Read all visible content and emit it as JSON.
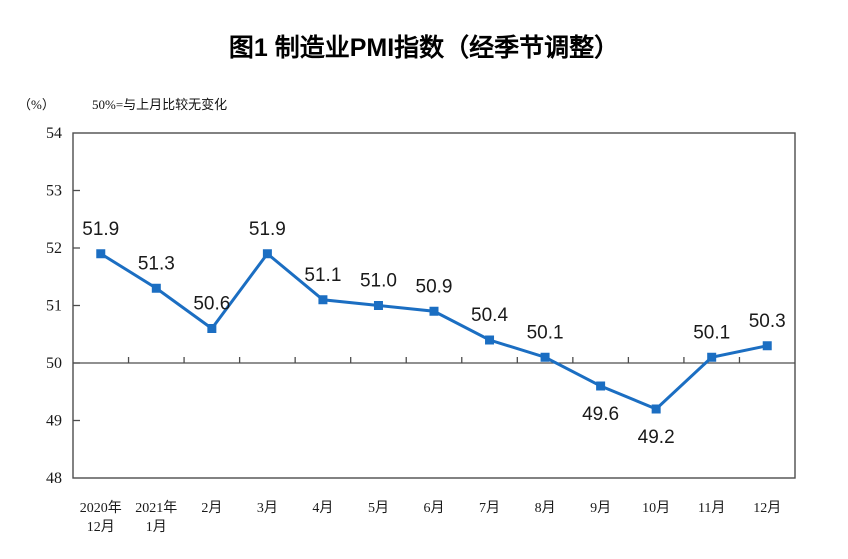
{
  "chart_data": {
    "type": "line",
    "title": "图1 制造业PMI指数（经季节调整）",
    "unit_label": "（%）",
    "note": "50%=与上月比较无变化",
    "categories": [
      [
        "2020年",
        "12月"
      ],
      [
        "2021年",
        "1月"
      ],
      "2月",
      "3月",
      "4月",
      "5月",
      "6月",
      "7月",
      "8月",
      "9月",
      "10月",
      "11月",
      "12月"
    ],
    "values": [
      51.9,
      51.3,
      50.6,
      51.9,
      51.1,
      51.0,
      50.9,
      50.4,
      50.1,
      49.6,
      49.2,
      50.1,
      50.3
    ],
    "label_positions": [
      "above",
      "above",
      "above",
      "above",
      "above",
      "above",
      "above",
      "above",
      "above",
      "below",
      "below",
      "above",
      "above"
    ],
    "ylim": [
      48,
      54
    ],
    "yticks": [
      48,
      49,
      50,
      51,
      52,
      53,
      54
    ],
    "reference_line_value": 50,
    "grid": "off",
    "legend_position": "none",
    "colors": {
      "line": "#1B6EC2",
      "axis": "#4D4D4D",
      "text": "#1A1A1A"
    }
  }
}
